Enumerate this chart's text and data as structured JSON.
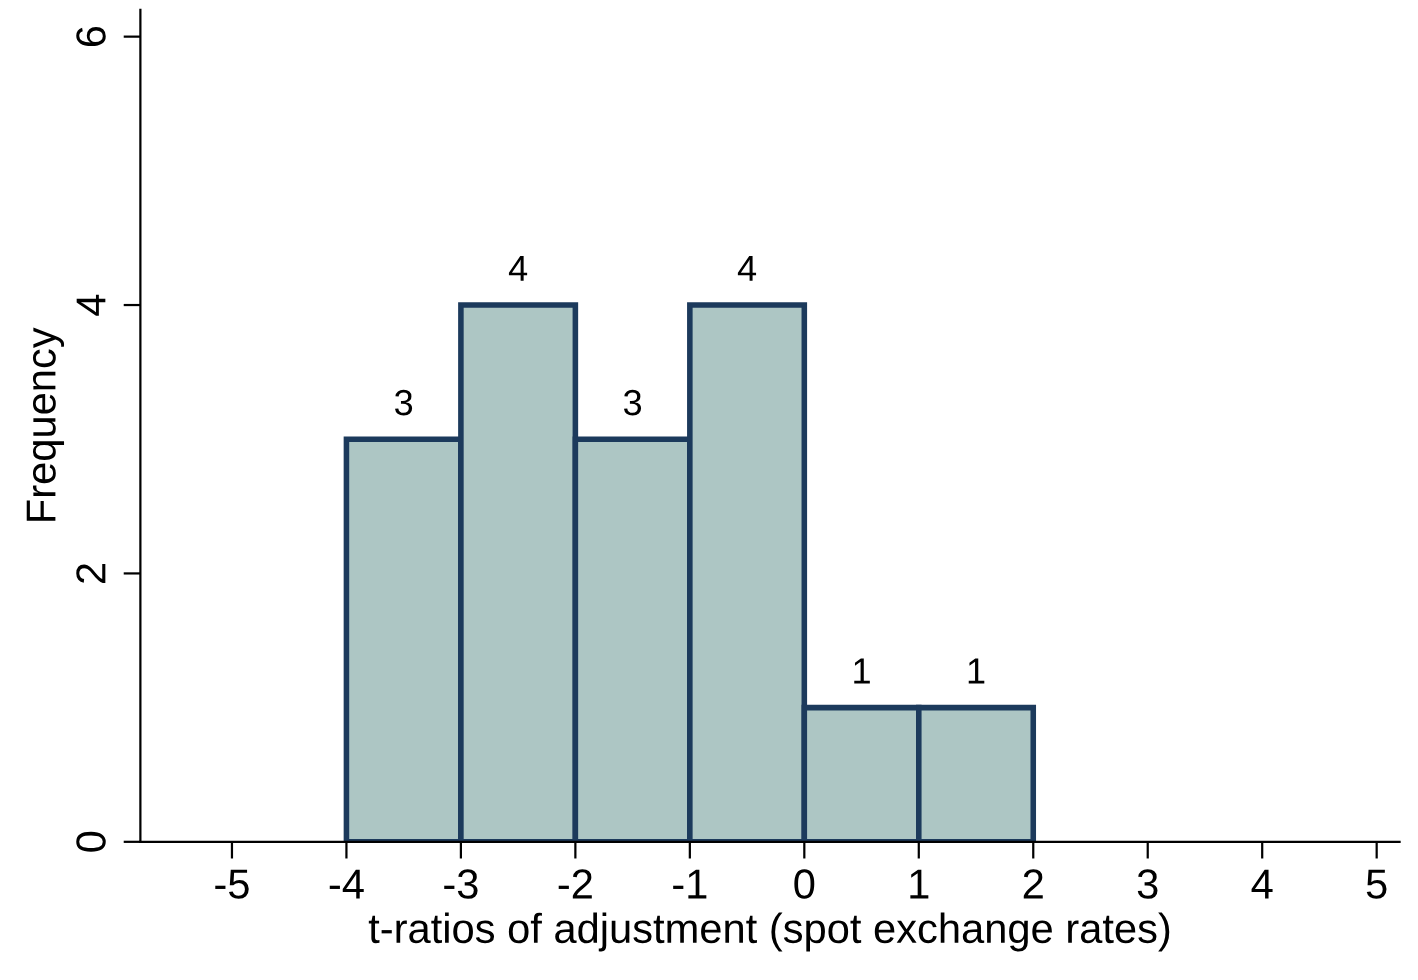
{
  "chart_data": {
    "type": "histogram",
    "xlabel": "t-ratios of adjustment (spot exchange rates)",
    "ylabel": "Frequency",
    "bins": [
      -4,
      -3,
      -2,
      -1,
      0,
      1,
      2
    ],
    "values": [
      3,
      4,
      3,
      4,
      1,
      1
    ],
    "color": "#adc6c4",
    "xlim": [
      -5.8,
      5.2
    ],
    "xticks": [
      -5,
      -4,
      -3,
      -2,
      -1,
      0,
      1,
      2,
      3,
      4,
      5
    ],
    "ylim": [
      0,
      6.2
    ],
    "yticks": [
      0,
      2,
      4,
      6
    ],
    "data_labels": true,
    "grid": false,
    "legend": false
  }
}
